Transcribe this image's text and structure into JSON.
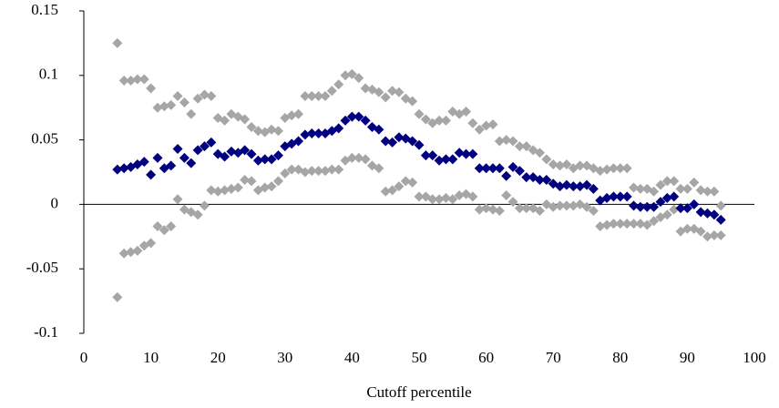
{
  "chart_data": {
    "type": "scatter",
    "x_label": "Cutoff percentile",
    "x": [
      5,
      6,
      7,
      8,
      9,
      10,
      11,
      12,
      13,
      14,
      15,
      16,
      17,
      18,
      19,
      20,
      21,
      22,
      23,
      24,
      25,
      26,
      27,
      28,
      29,
      30,
      31,
      32,
      33,
      34,
      35,
      36,
      37,
      38,
      39,
      40,
      41,
      42,
      43,
      44,
      45,
      46,
      47,
      48,
      49,
      50,
      51,
      52,
      53,
      54,
      55,
      56,
      57,
      58,
      59,
      60,
      61,
      62,
      63,
      64,
      65,
      66,
      67,
      68,
      69,
      70,
      71,
      72,
      73,
      74,
      75,
      76,
      77,
      78,
      79,
      80,
      81,
      82,
      83,
      84,
      85,
      86,
      87,
      88,
      89,
      90,
      91,
      92,
      93,
      94,
      95
    ],
    "series": [
      {
        "color": "#a6a6a6",
        "values": [
          0.125,
          0.096,
          0.096,
          0.097,
          0.097,
          0.09,
          0.075,
          0.076,
          0.077,
          0.084,
          0.079,
          0.07,
          0.082,
          0.085,
          0.084,
          0.067,
          0.065,
          0.07,
          0.068,
          0.066,
          0.06,
          0.057,
          0.056,
          0.058,
          0.057,
          0.067,
          0.069,
          0.07,
          0.084,
          0.084,
          0.084,
          0.084,
          0.088,
          0.093,
          0.1,
          0.101,
          0.098,
          0.09,
          0.089,
          0.087,
          0.083,
          0.088,
          0.087,
          0.082,
          0.08,
          0.07,
          0.066,
          0.063,
          0.065,
          0.065,
          0.072,
          0.07,
          0.072,
          0.063,
          0.058,
          0.061,
          0.062,
          0.049,
          0.05,
          0.049,
          0.045,
          0.045,
          0.042,
          0.04,
          0.035,
          0.031,
          0.03,
          0.031,
          0.028,
          0.03,
          0.03,
          0.028,
          0.026,
          0.027,
          0.028,
          0.028,
          0.028,
          0.013,
          0.012,
          0.012,
          0.01,
          0.015,
          0.018,
          0.018,
          0.012,
          0.012,
          0.017,
          0.011,
          0.01,
          0.01,
          -0.001
        ]
      },
      {
        "color": "#a6a6a6",
        "values": [
          -0.072,
          -0.038,
          -0.037,
          -0.036,
          -0.032,
          -0.03,
          -0.017,
          -0.02,
          -0.017,
          0.004,
          -0.004,
          -0.006,
          -0.008,
          -0.001,
          0.011,
          0.01,
          0.011,
          0.012,
          0.013,
          0.019,
          0.018,
          0.011,
          0.013,
          0.014,
          0.018,
          0.024,
          0.027,
          0.027,
          0.025,
          0.026,
          0.026,
          0.026,
          0.027,
          0.027,
          0.034,
          0.036,
          0.036,
          0.035,
          0.03,
          0.028,
          0.01,
          0.011,
          0.014,
          0.018,
          0.017,
          0.006,
          0.006,
          0.004,
          0.004,
          0.005,
          0.004,
          0.007,
          0.008,
          0.006,
          -0.004,
          -0.003,
          -0.004,
          -0.005,
          0.007,
          0.002,
          -0.003,
          -0.003,
          -0.003,
          -0.005,
          0.0,
          -0.002,
          -0.001,
          -0.001,
          -0.001,
          0.0,
          -0.002,
          -0.005,
          -0.017,
          -0.016,
          -0.015,
          -0.015,
          -0.015,
          -0.015,
          -0.015,
          -0.016,
          -0.013,
          -0.01,
          -0.008,
          -0.004,
          -0.021,
          -0.019,
          -0.019,
          -0.021,
          -0.025,
          -0.024,
          -0.024
        ]
      },
      {
        "color": "#000080",
        "values": [
          0.027,
          0.028,
          0.029,
          0.031,
          0.033,
          0.023,
          0.036,
          0.028,
          0.03,
          0.043,
          0.036,
          0.032,
          0.042,
          0.045,
          0.048,
          0.039,
          0.037,
          0.041,
          0.04,
          0.042,
          0.039,
          0.034,
          0.035,
          0.035,
          0.038,
          0.045,
          0.047,
          0.049,
          0.054,
          0.055,
          0.055,
          0.055,
          0.057,
          0.059,
          0.065,
          0.068,
          0.068,
          0.065,
          0.06,
          0.058,
          0.049,
          0.048,
          0.052,
          0.051,
          0.049,
          0.046,
          0.038,
          0.038,
          0.034,
          0.035,
          0.035,
          0.04,
          0.039,
          0.039,
          0.028,
          0.028,
          0.028,
          0.028,
          0.022,
          0.029,
          0.026,
          0.021,
          0.021,
          0.019,
          0.019,
          0.016,
          0.014,
          0.015,
          0.014,
          0.014,
          0.015,
          0.012,
          0.003,
          0.005,
          0.006,
          0.006,
          0.006,
          -0.001,
          -0.002,
          -0.002,
          -0.002,
          0.002,
          0.005,
          0.006,
          -0.003,
          -0.003,
          0.0,
          -0.006,
          -0.007,
          -0.008,
          -0.012
        ]
      }
    ],
    "xlim": [
      0,
      100
    ],
    "xticks": [
      0,
      10,
      20,
      30,
      40,
      50,
      60,
      70,
      80,
      90,
      100
    ],
    "ylim": [
      -0.1,
      0.15
    ],
    "yticks": [
      -0.1,
      -0.05,
      0,
      0.05,
      0.1,
      0.15
    ],
    "grid": false
  }
}
